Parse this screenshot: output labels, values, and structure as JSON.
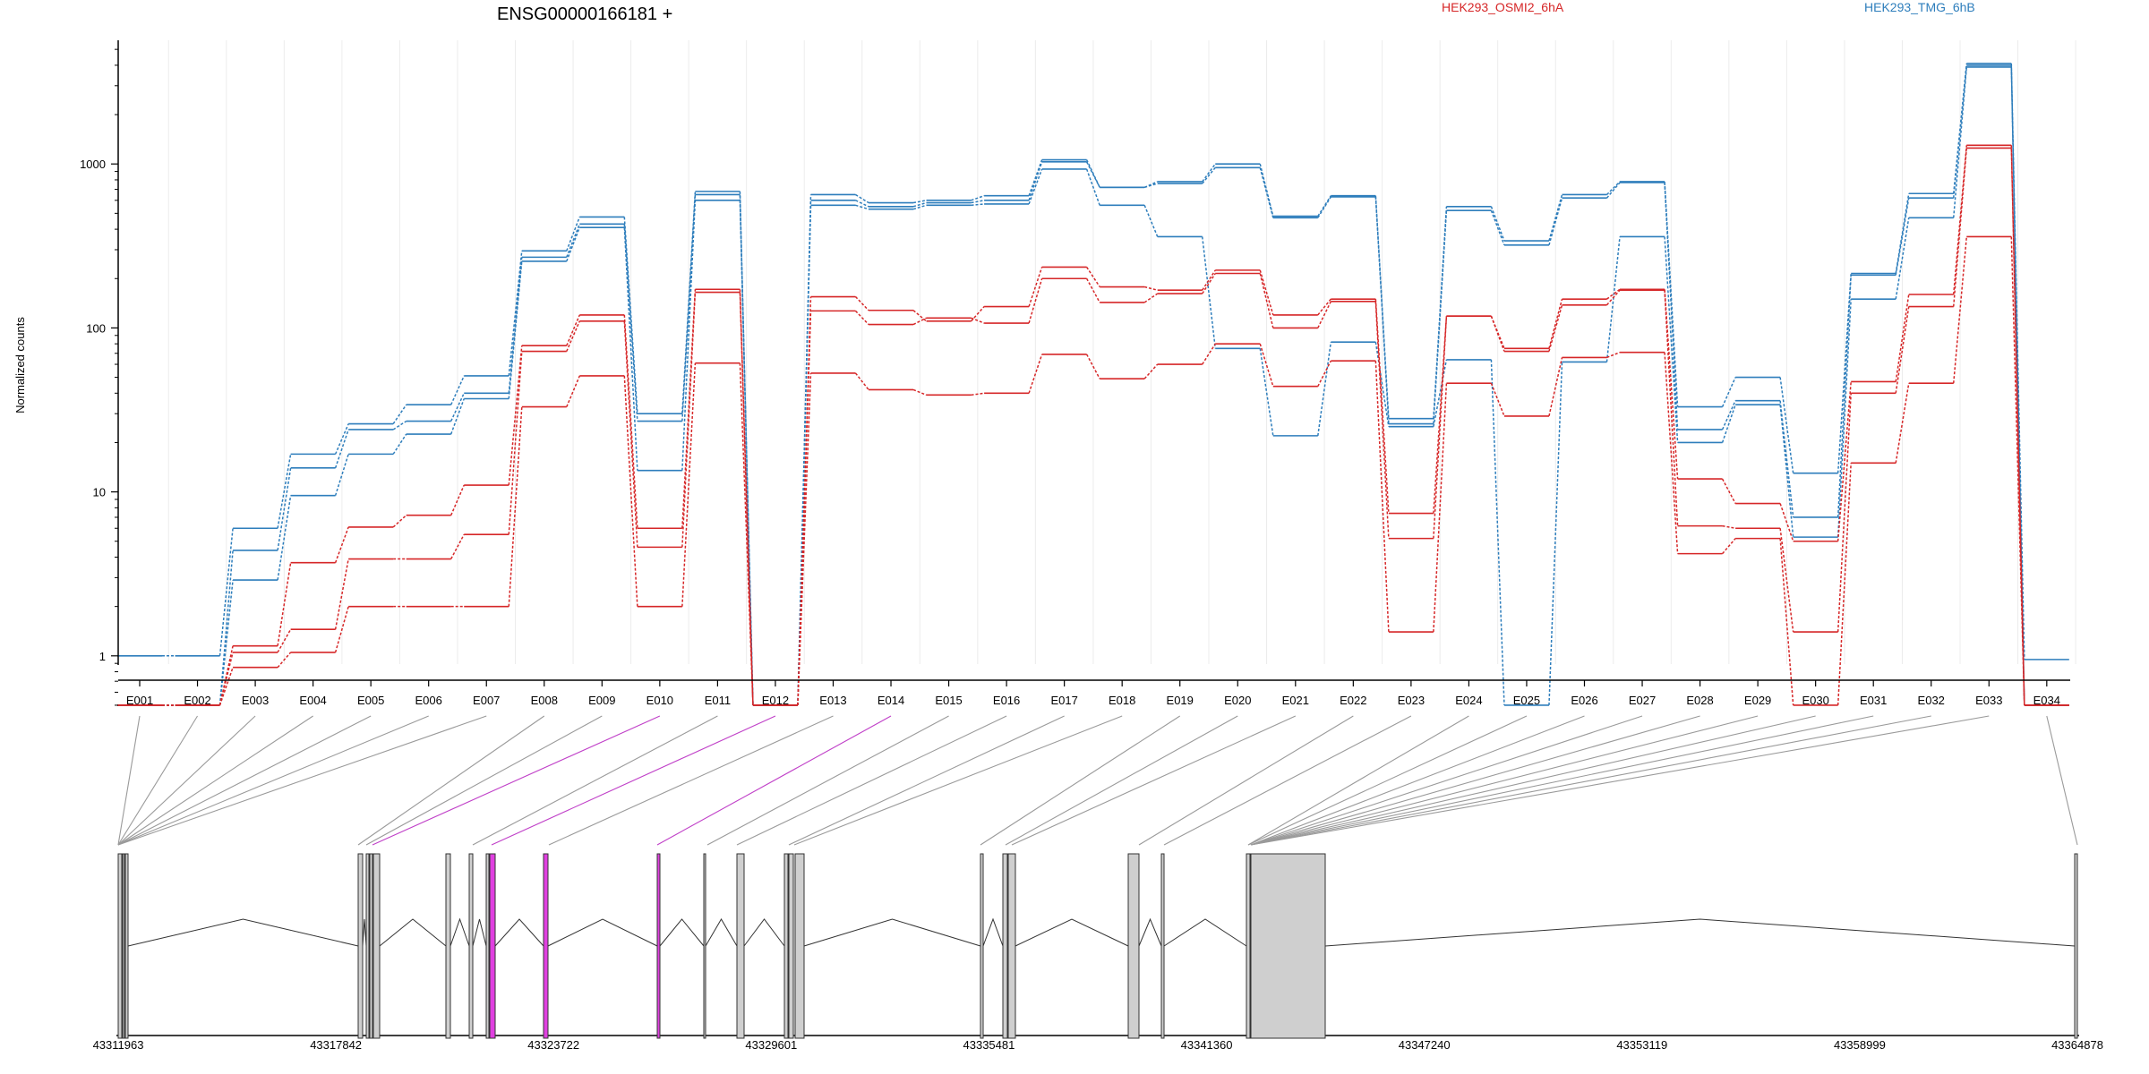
{
  "chart_data": {
    "type": "line",
    "title": "ENSG00000166181 +",
    "ylabel": "Normalized counts",
    "yscale": "log",
    "ylim": [
      0.5,
      5000
    ],
    "yticks": [
      "1",
      "10",
      "100",
      "1000"
    ],
    "categories": [
      "E001",
      "E002",
      "E003",
      "E004",
      "E005",
      "E006",
      "E007",
      "E008",
      "E009",
      "E010",
      "E011",
      "E012",
      "E013",
      "E014",
      "E015",
      "E016",
      "E017",
      "E018",
      "E019",
      "E020",
      "E021",
      "E022",
      "E023",
      "E024",
      "E025",
      "E026",
      "E027",
      "E028",
      "E029",
      "E030",
      "E031",
      "E032",
      "E033",
      "E034"
    ],
    "legend": [
      {
        "name": "HEK293_OSMI2_6hA",
        "color": "#d62728"
      },
      {
        "name": "HEK293_TMG_6hB",
        "color": "#2e7ebc"
      }
    ],
    "series": [
      {
        "group": "HEK293_TMG_6hB",
        "color": "#2e7ebc",
        "values": [
          1,
          1,
          6,
          17,
          26,
          34,
          51,
          295,
          475,
          30,
          680,
          0.5,
          650,
          580,
          600,
          640,
          1060,
          720,
          780,
          1000,
          480,
          640,
          28,
          550,
          340,
          650,
          780,
          33,
          50,
          13,
          215,
          660,
          4100,
          0.95
        ]
      },
      {
        "group": "HEK293_TMG_6hB",
        "color": "#2e7ebc",
        "values": [
          0.5,
          0.5,
          4.4,
          14,
          24,
          27,
          40,
          270,
          430,
          27,
          650,
          0.5,
          600,
          550,
          580,
          600,
          1030,
          720,
          760,
          950,
          470,
          630,
          26,
          520,
          320,
          620,
          770,
          24,
          36,
          7,
          210,
          620,
          4000,
          0.5
        ]
      },
      {
        "group": "HEK293_TMG_6hB",
        "color": "#2e7ebc",
        "values": [
          0.5,
          0.5,
          2.9,
          9.5,
          17,
          22.5,
          37,
          255,
          410,
          13.5,
          600,
          0.5,
          560,
          530,
          560,
          570,
          930,
          560,
          360,
          75,
          22,
          82,
          25,
          64,
          0.5,
          62,
          360,
          20,
          34,
          5.3,
          150,
          470,
          3900,
          0.5
        ]
      },
      {
        "group": "HEK293_OSMI2_6hA",
        "color": "#d62728",
        "values": [
          0.5,
          0.5,
          1.15,
          3.7,
          6.1,
          7.2,
          11,
          78,
          120,
          6,
          172,
          0.5,
          155,
          128,
          110,
          135,
          235,
          178,
          170,
          225,
          120,
          150,
          7.4,
          118,
          75,
          150,
          172,
          12,
          8.5,
          5,
          47,
          160,
          1300,
          0.5
        ]
      },
      {
        "group": "HEK293_OSMI2_6hA",
        "color": "#d62728",
        "values": [
          0.5,
          0.5,
          1.05,
          1.45,
          3.9,
          3.9,
          5.5,
          72,
          110,
          4.6,
          165,
          0.5,
          127,
          105,
          115,
          107,
          200,
          143,
          162,
          215,
          100,
          145,
          5.2,
          118,
          72,
          138,
          170,
          6.2,
          6,
          1.4,
          40,
          135,
          1250,
          0.5
        ]
      },
      {
        "group": "HEK293_OSMI2_6hA",
        "color": "#d62728",
        "values": [
          0.5,
          0.5,
          0.85,
          1.05,
          2,
          2,
          2,
          33,
          51,
          2,
          61,
          0.5,
          53,
          42,
          39,
          40,
          69,
          49,
          60,
          80,
          44,
          63,
          1.4,
          46,
          29,
          66,
          71,
          4.2,
          5.2,
          0.5,
          15,
          46,
          360,
          0.5
        ]
      }
    ],
    "genome": {
      "coordinates": [
        "43311963",
        "43317842",
        "43323722",
        "43329601",
        "43335481",
        "43341360",
        "43347240",
        "43353119",
        "43358999",
        "43364878"
      ],
      "highlighted_exons": [
        "E010",
        "E012",
        "E014"
      ],
      "highlight_color": "#e040e0"
    }
  }
}
